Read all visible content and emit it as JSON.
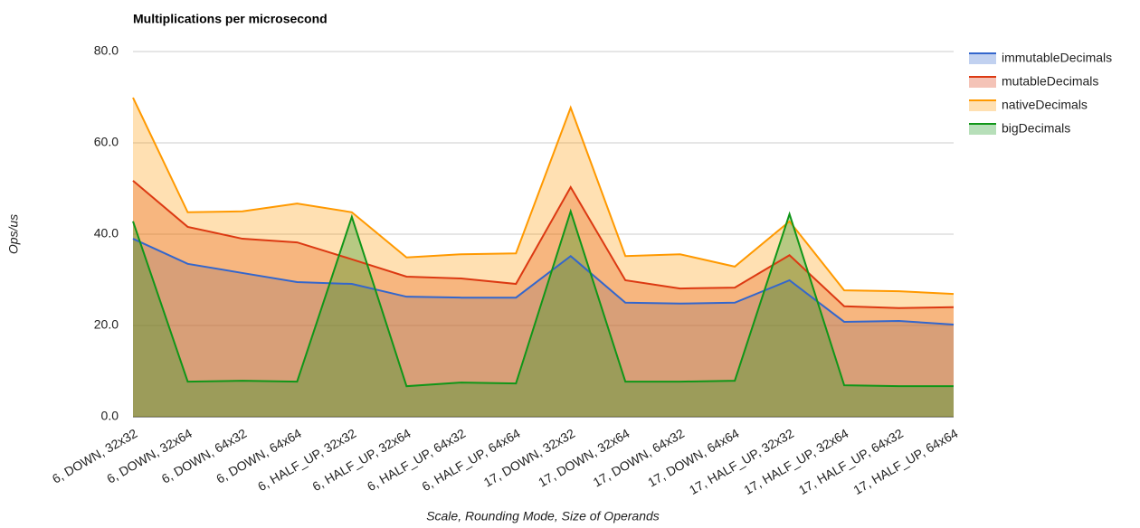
{
  "chart_data": {
    "type": "area",
    "title": "Multiplications per microsecond",
    "x_label": "Scale, Rounding Mode, Size of Operands",
    "y_label": "Ops/us",
    "categories": [
      "6, DOWN, 32x32",
      "6, DOWN, 32x64",
      "6, DOWN, 64x32",
      "6, DOWN, 64x64",
      "6, HALF_UP, 32x32",
      "6, HALF_UP, 32x64",
      "6, HALF_UP, 64x32",
      "6, HALF_UP, 64x64",
      "17, DOWN, 32x32",
      "17, DOWN, 32x64",
      "17, DOWN, 64x32",
      "17, DOWN, 64x64",
      "17, HALF_UP, 32x32",
      "17, HALF_UP, 32x64",
      "17, HALF_UP, 64x32",
      "17, HALF_UP, 64x64"
    ],
    "series": [
      {
        "name": "immutableDecimals",
        "color": "#3366cc",
        "values": [
          39.0,
          33.5,
          31.5,
          29.5,
          29.1,
          26.3,
          26.1,
          26.1,
          35.2,
          25.0,
          24.8,
          25.0,
          29.9,
          20.8,
          21.0,
          20.2
        ]
      },
      {
        "name": "mutableDecimals",
        "color": "#dc3912",
        "values": [
          51.7,
          41.6,
          39.0,
          38.2,
          34.5,
          30.7,
          30.3,
          29.1,
          50.3,
          29.9,
          28.1,
          28.3,
          35.4,
          24.2,
          23.8,
          24.0
        ]
      },
      {
        "name": "nativeDecimals",
        "color": "#ff9900",
        "values": [
          69.9,
          44.8,
          45.0,
          46.7,
          44.8,
          34.9,
          35.6,
          35.8,
          67.7,
          35.2,
          35.6,
          32.9,
          42.8,
          27.7,
          27.5,
          26.9
        ]
      },
      {
        "name": "bigDecimals",
        "color": "#109618",
        "values": [
          42.8,
          7.7,
          7.9,
          7.7,
          43.8,
          6.7,
          7.5,
          7.3,
          45.0,
          7.7,
          7.7,
          7.9,
          44.4,
          6.9,
          6.7,
          6.7
        ]
      }
    ],
    "ylim": [
      0,
      80
    ],
    "yticks": [
      {
        "value": 0,
        "label": "0.0"
      },
      {
        "value": 20,
        "label": "20.0"
      },
      {
        "value": 40,
        "label": "40.0"
      },
      {
        "value": 60,
        "label": "60.0"
      },
      {
        "value": 80,
        "label": "80.0"
      }
    ],
    "grid": true,
    "legend": "right"
  }
}
